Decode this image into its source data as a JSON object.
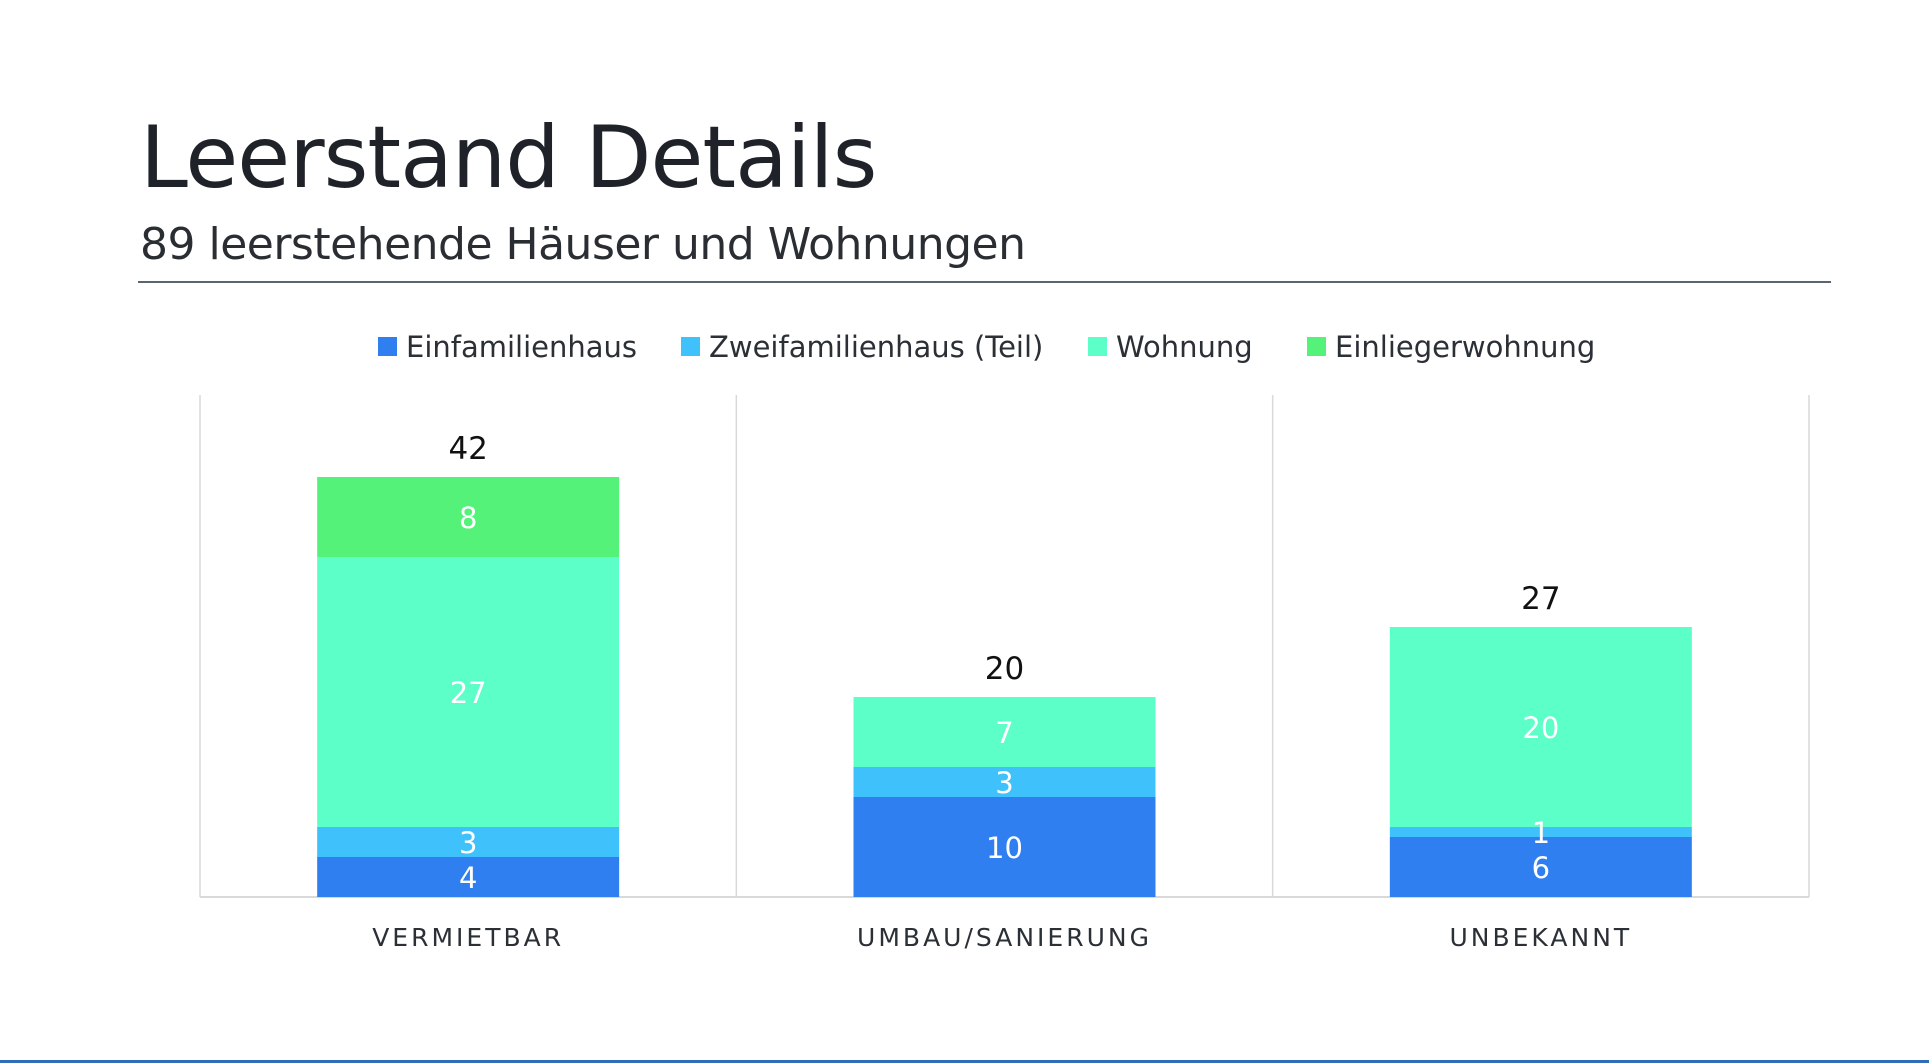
{
  "header": {
    "title": "Leerstand Details",
    "subtitle": "89 leerstehende Häuser und Wohnungen"
  },
  "colors": {
    "Einfamilienhaus": "#2f7ff0",
    "Zweifamilienhaus (Teil)": "#3fc1fb",
    "Wohnung": "#5cffc8",
    "Einliegerwohnung": "#55f27a",
    "axis": "#d9d9d9",
    "rule": "#5b6570",
    "bottom_line": "#2f6fb8"
  },
  "chart_data": {
    "type": "bar",
    "stacked": true,
    "categories": [
      "VERMIETBAR",
      "UMBAU/SANIERUNG",
      "UNBEKANNT"
    ],
    "series": [
      {
        "name": "Einfamilienhaus",
        "values": [
          4,
          10,
          6
        ]
      },
      {
        "name": "Zweifamilienhaus (Teil)",
        "values": [
          3,
          3,
          1
        ]
      },
      {
        "name": "Wohnung",
        "values": [
          27,
          7,
          20
        ]
      },
      {
        "name": "Einliegerwohnung",
        "values": [
          8,
          null,
          null
        ]
      }
    ],
    "totals": [
      42,
      20,
      27
    ],
    "legend": "top",
    "grid": false,
    "ylim": [
      0,
      45
    ]
  }
}
